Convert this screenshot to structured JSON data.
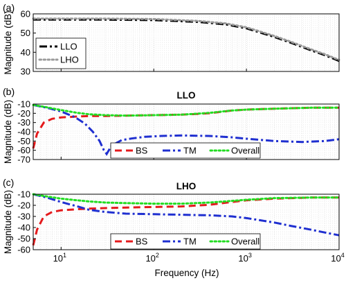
{
  "figure": {
    "xlabel": "Frequency (Hz)"
  },
  "colors": {
    "LLO": "#000000",
    "LHO": "#9a9a9a",
    "BS": "#e41a1c",
    "TM": "#1f2fd0",
    "Overall": "#22dd22"
  },
  "chart_data": [
    {
      "type": "line",
      "panel_label": "(a)",
      "title": "",
      "xlabel": "",
      "ylabel": "Magnitude (dB)",
      "xscale": "log",
      "xlim": [
        5,
        10000
      ],
      "ylim": [
        30,
        60
      ],
      "x_ticks": [
        10,
        100,
        1000,
        10000
      ],
      "y_ticks": [
        30,
        40,
        50,
        60
      ],
      "grid": true,
      "legend_position": "bottom-left",
      "series": [
        {
          "name": "LLO",
          "style": "dashdot",
          "color": "#000000",
          "x": [
            5,
            10,
            30,
            100,
            300,
            600,
            1000,
            2000,
            3000,
            5000,
            7000,
            10000
          ],
          "y": [
            57,
            57,
            57,
            56.8,
            55.8,
            54.5,
            52.5,
            48,
            45,
            41,
            38.5,
            35.5
          ]
        },
        {
          "name": "LHO",
          "style": "dotted",
          "color": "#9a9a9a",
          "x": [
            5,
            10,
            30,
            100,
            300,
            600,
            1000,
            2000,
            3000,
            5000,
            7000,
            10000
          ],
          "y": [
            57.5,
            57.5,
            57.5,
            57.3,
            56.3,
            55,
            53,
            48.5,
            45.5,
            41.5,
            39,
            36
          ]
        }
      ]
    },
    {
      "type": "line",
      "panel_label": "(b)",
      "title": "LLO",
      "xlabel": "",
      "ylabel": "Magnitude (dB)",
      "xscale": "log",
      "xlim": [
        5,
        10000
      ],
      "ylim": [
        -70,
        -10
      ],
      "x_ticks": [
        10,
        100,
        1000,
        10000
      ],
      "y_ticks": [
        -10,
        -20,
        -30,
        -40,
        -50,
        -60,
        -70
      ],
      "grid": true,
      "legend_position": "bottom",
      "series": [
        {
          "name": "BS",
          "style": "dashed",
          "color": "#e41a1c",
          "x": [
            5,
            5.5,
            6.5,
            8,
            10,
            15,
            20,
            30,
            50,
            100,
            200,
            400,
            700,
            1000,
            2000,
            3000,
            5000,
            10000
          ],
          "y": [
            -58,
            -42,
            -30,
            -26,
            -24.5,
            -23.5,
            -23,
            -23,
            -22.5,
            -22,
            -21.5,
            -20,
            -17,
            -16,
            -15,
            -14.5,
            -14,
            -14
          ]
        },
        {
          "name": "TM",
          "style": "dashdot",
          "color": "#1f2fd0",
          "x": [
            5,
            7,
            10,
            14,
            18,
            22,
            26,
            29,
            31,
            35,
            45,
            60,
            80,
            120,
            200,
            400,
            700,
            1000,
            2000,
            4000,
            7000,
            10000
          ],
          "y": [
            -11,
            -14,
            -18,
            -24,
            -31,
            -40,
            -50,
            -60,
            -64,
            -55,
            -49,
            -47,
            -45.5,
            -44.5,
            -44,
            -44.5,
            -46,
            -47.5,
            -50,
            -51,
            -50,
            -48
          ]
        },
        {
          "name": "Overall",
          "style": "dotted",
          "color": "#22dd22",
          "x": [
            5,
            7,
            10,
            15,
            20,
            30,
            50,
            100,
            200,
            400,
            700,
            1000,
            2000,
            5000,
            10000
          ],
          "y": [
            -11,
            -13.5,
            -16.5,
            -19.5,
            -21,
            -22,
            -22.5,
            -22,
            -21.5,
            -19.5,
            -17,
            -16,
            -15,
            -14,
            -14
          ]
        }
      ]
    },
    {
      "type": "line",
      "panel_label": "(c)",
      "title": "LHO",
      "xlabel": "Frequency (Hz)",
      "ylabel": "Magnitude (dB)",
      "xscale": "log",
      "xlim": [
        5,
        10000
      ],
      "ylim": [
        -60,
        -10
      ],
      "x_ticks": [
        10,
        100,
        1000,
        10000
      ],
      "y_ticks": [
        -10,
        -20,
        -30,
        -40,
        -50,
        -60
      ],
      "grid": true,
      "legend_position": "bottom",
      "series": [
        {
          "name": "BS",
          "style": "dashed",
          "color": "#e41a1c",
          "x": [
            5,
            5.5,
            6.5,
            8,
            10,
            15,
            20,
            30,
            50,
            100,
            200,
            400,
            700,
            1000,
            2000,
            5000,
            10000
          ],
          "y": [
            -56,
            -42,
            -30,
            -26,
            -24.5,
            -23.5,
            -23,
            -22.5,
            -22,
            -21.5,
            -21,
            -19.5,
            -17,
            -15.5,
            -14,
            -13,
            -13
          ]
        },
        {
          "name": "TM",
          "style": "dashdot",
          "color": "#1f2fd0",
          "x": [
            5,
            7,
            10,
            15,
            20,
            30,
            50,
            100,
            200,
            400,
            700,
            1000,
            2000,
            3000,
            5000,
            7000,
            10000
          ],
          "y": [
            -10,
            -13,
            -17,
            -21,
            -24,
            -26,
            -27.5,
            -28,
            -28.5,
            -29,
            -30,
            -31.5,
            -35.5,
            -38.5,
            -42,
            -44.5,
            -47
          ]
        },
        {
          "name": "Overall",
          "style": "dotted",
          "color": "#22dd22",
          "x": [
            5,
            7,
            10,
            15,
            20,
            30,
            50,
            100,
            200,
            400,
            700,
            1000,
            2000,
            5000,
            10000
          ],
          "y": [
            -10,
            -12,
            -14,
            -15.5,
            -16.5,
            -17.5,
            -18,
            -18.5,
            -18.5,
            -17.5,
            -16,
            -15,
            -13.5,
            -13,
            -13
          ]
        }
      ]
    }
  ]
}
